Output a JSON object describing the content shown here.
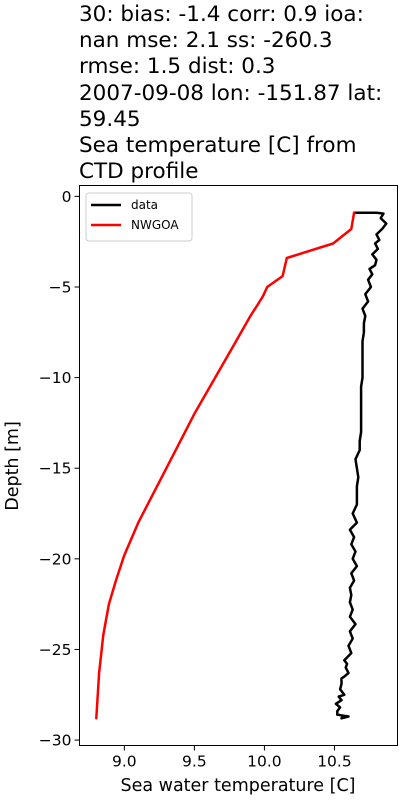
{
  "chart_data": {
    "type": "line",
    "title_lines": [
      "30: bias: -1.4  corr: 0.9  ioa:",
      "nan  mse: 2.1  ss: -260.3",
      "rmse: 1.5  dist: 0.3",
      "2007-09-08 lon: -151.87 lat:",
      "59.45",
      "Sea temperature [C] from",
      "CTD profile"
    ],
    "xlabel": "Sea water temperature [C]",
    "ylabel": "Depth [m]",
    "xlim": [
      8.68,
      10.95
    ],
    "ylim": [
      -30.3,
      0.6
    ],
    "xticks": [
      9.0,
      9.5,
      10.0,
      10.5
    ],
    "xtick_labels": [
      "9.0",
      "9.5",
      "10.0",
      "10.5"
    ],
    "yticks": [
      0,
      -5,
      -10,
      -15,
      -20,
      -25,
      -30
    ],
    "ytick_labels": [
      "0",
      "−5",
      "−10",
      "−15",
      "−20",
      "−25",
      "−30"
    ],
    "grid": false,
    "legend_position": "upper-left",
    "series": [
      {
        "name": "data",
        "color": "#000000",
        "x": [
          10.64,
          10.74,
          10.8,
          10.85,
          10.83,
          10.87,
          10.84,
          10.8,
          10.82,
          10.79,
          10.81,
          10.77,
          10.8,
          10.79,
          10.75,
          10.77,
          10.74,
          10.76,
          10.72,
          10.74,
          10.7,
          10.72,
          10.71,
          10.71,
          10.7,
          10.7,
          10.7,
          10.7,
          10.7,
          10.69,
          10.69,
          10.69,
          10.69,
          10.69,
          10.69,
          10.68,
          10.68,
          10.65,
          10.66,
          10.67,
          10.66,
          10.66,
          10.66,
          10.63,
          10.66,
          10.61,
          10.64,
          10.62,
          10.65,
          10.63,
          10.66,
          10.62,
          10.64,
          10.61,
          10.62,
          10.61,
          10.63,
          10.61,
          10.65,
          10.61,
          10.63,
          10.6,
          10.62,
          10.57,
          10.59,
          10.58,
          10.6,
          10.57,
          10.55,
          10.55,
          10.54,
          10.57,
          10.53,
          10.55,
          10.51,
          10.54,
          10.52,
          10.52,
          10.6,
          10.55,
          10.56
        ],
        "y": [
          -0.9,
          -0.9,
          -0.9,
          -0.95,
          -1.2,
          -1.5,
          -1.8,
          -2.1,
          -2.4,
          -2.6,
          -2.9,
          -3.2,
          -3.5,
          -3.8,
          -4.0,
          -4.3,
          -4.6,
          -5.0,
          -5.4,
          -5.8,
          -6.2,
          -6.6,
          -7.0,
          -7.5,
          -8.0,
          -8.5,
          -9.0,
          -9.5,
          -10.0,
          -10.5,
          -11.0,
          -11.5,
          -12.0,
          -12.5,
          -13.0,
          -13.5,
          -14.0,
          -14.5,
          -15.0,
          -15.5,
          -16.0,
          -16.5,
          -17.0,
          -17.5,
          -18.0,
          -18.4,
          -18.8,
          -19.2,
          -19.6,
          -20.0,
          -20.4,
          -20.8,
          -21.2,
          -21.6,
          -22.0,
          -22.4,
          -22.8,
          -23.2,
          -23.6,
          -24.0,
          -24.4,
          -24.8,
          -25.2,
          -25.6,
          -25.8,
          -26.0,
          -26.3,
          -26.5,
          -26.6,
          -26.9,
          -27.2,
          -27.5,
          -27.6,
          -27.8,
          -28.0,
          -28.2,
          -28.4,
          -28.6,
          -28.7,
          -28.8,
          -28.7
        ]
      },
      {
        "name": "NWGOA",
        "color": "#ff0000",
        "x": [
          10.64,
          10.62,
          10.49,
          10.16,
          10.13,
          10.02,
          9.99,
          9.95,
          9.9,
          9.76,
          9.5,
          9.3,
          9.2,
          9.1,
          9.0,
          8.94,
          8.89,
          8.85,
          8.82,
          8.8
        ],
        "y": [
          -0.9,
          -1.8,
          -2.6,
          -3.4,
          -4.4,
          -5.0,
          -5.5,
          -6.0,
          -6.6,
          -8.5,
          -12.0,
          -15.0,
          -16.5,
          -18.0,
          -19.8,
          -21.2,
          -22.5,
          -24.2,
          -26.3,
          -28.8
        ]
      }
    ]
  }
}
